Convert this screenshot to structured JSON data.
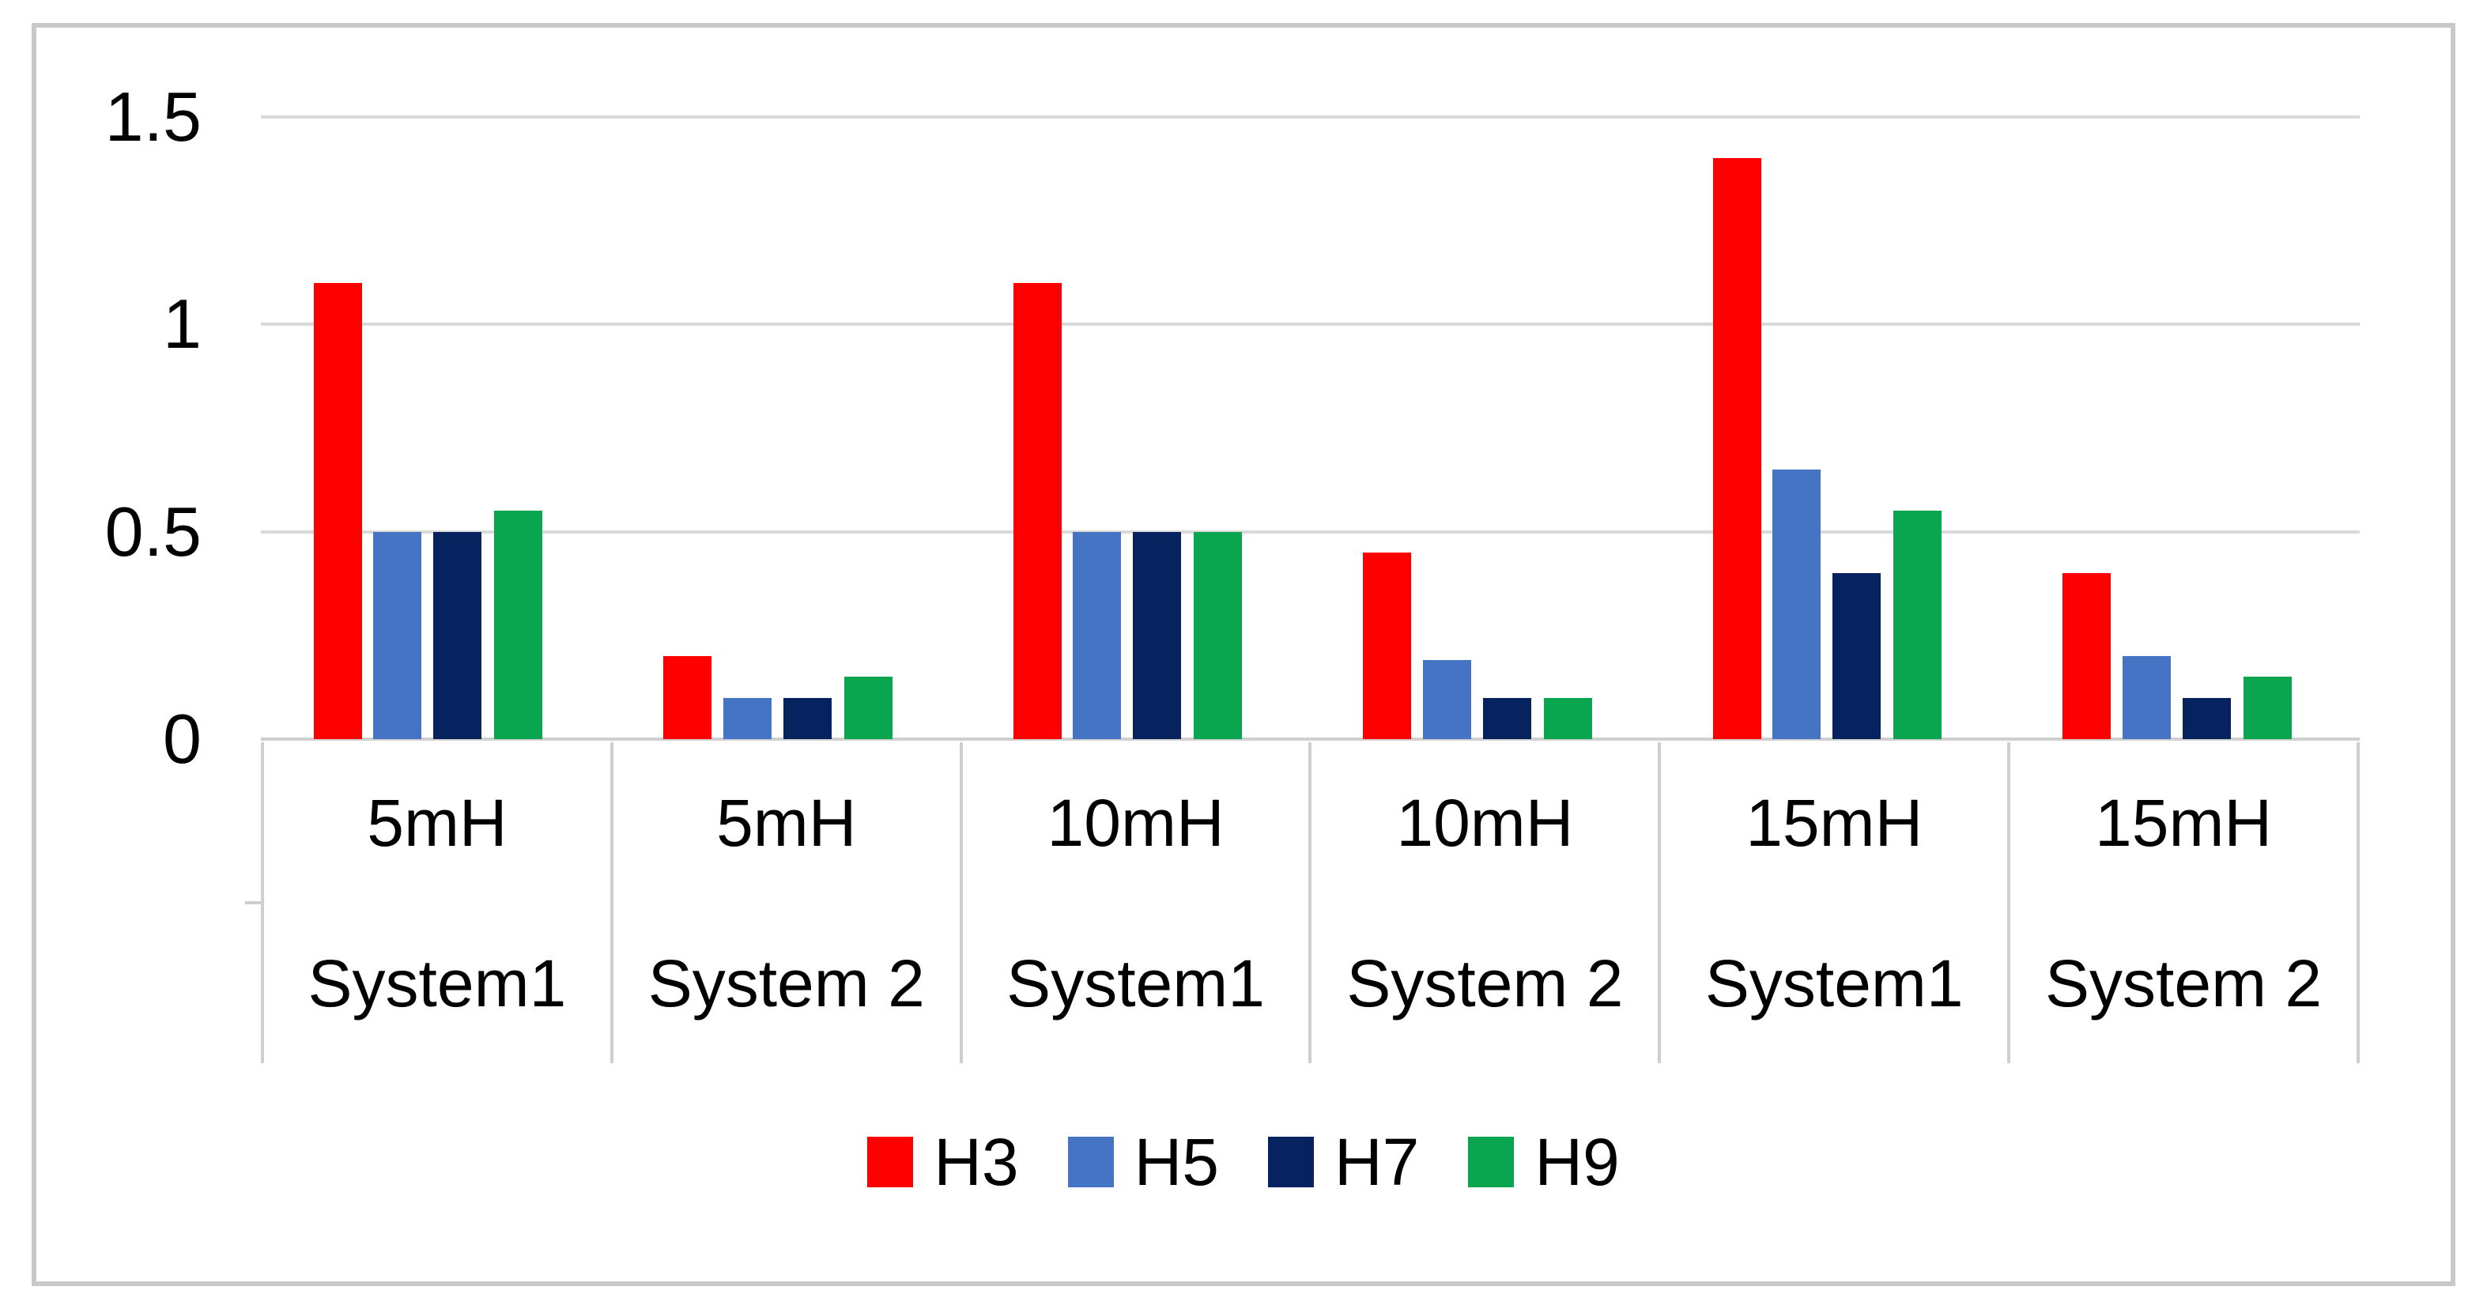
{
  "figure": {
    "background_color": "#FFFFFF",
    "frame_border_color": "#C8C8C8",
    "gridline_color": "#D9D9D9",
    "axis_line_color": "#CFCFCF",
    "text_color": "#000000"
  },
  "y_axis": {
    "max": 1.5,
    "ticks": [
      {
        "label": "1.5",
        "value": 1.5
      },
      {
        "label": "1",
        "value": 1.0
      },
      {
        "label": "0.5",
        "value": 0.5
      },
      {
        "label": "0",
        "value": 0.0
      }
    ]
  },
  "chart_data": {
    "type": "bar",
    "title": "",
    "xlabel": "",
    "ylabel": "",
    "ylim": [
      0,
      1.5
    ],
    "yticks": [
      0,
      0.5,
      1,
      1.5
    ],
    "grid": true,
    "legend_position": "bottom",
    "categories": [
      {
        "line1": "5mH",
        "line2": "System1"
      },
      {
        "line1": "5mH",
        "line2": "System 2"
      },
      {
        "line1": "10mH",
        "line2": "System1"
      },
      {
        "line1": "10mH",
        "line2": "System 2"
      },
      {
        "line1": "15mH",
        "line2": "System1"
      },
      {
        "line1": "15mH",
        "line2": "System 2"
      }
    ],
    "series": [
      {
        "name": "H3",
        "color": "#FE0000",
        "values": [
          1.1,
          0.2,
          1.1,
          0.45,
          1.4,
          0.4
        ]
      },
      {
        "name": "H5",
        "color": "#4674C5",
        "values": [
          0.5,
          0.1,
          0.5,
          0.19,
          0.65,
          0.2
        ]
      },
      {
        "name": "H7",
        "color": "#062360",
        "values": [
          0.5,
          0.1,
          0.5,
          0.1,
          0.4,
          0.1
        ]
      },
      {
        "name": "H9",
        "color": "#0AA64F",
        "values": [
          0.55,
          0.15,
          0.5,
          0.1,
          0.55,
          0.15
        ]
      }
    ]
  },
  "legend": {
    "items": [
      {
        "label": "H3",
        "color": "#FE0000"
      },
      {
        "label": "H5",
        "color": "#4674C5"
      },
      {
        "label": "H7",
        "color": "#062360"
      },
      {
        "label": "H9",
        "color": "#0AA64F"
      }
    ]
  }
}
